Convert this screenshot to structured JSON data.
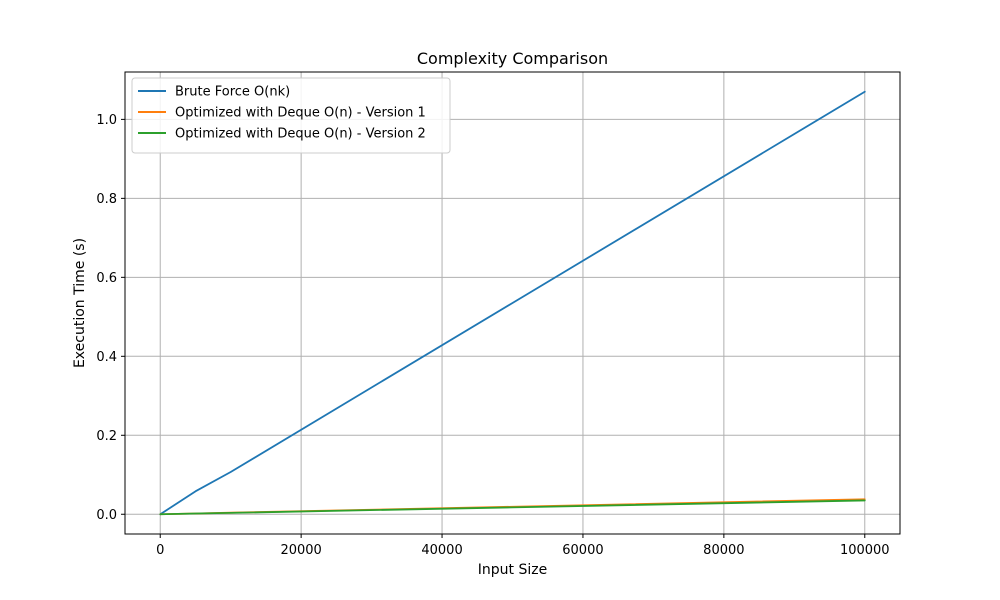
{
  "chart_data": {
    "type": "line",
    "title": "Complexity Comparison",
    "xlabel": "Input Size",
    "ylabel": "Execution Time (s)",
    "xlim": [
      -5000,
      105000
    ],
    "ylim": [
      -0.05,
      1.12
    ],
    "x_ticks": [
      0,
      20000,
      40000,
      60000,
      80000,
      100000
    ],
    "y_ticks": [
      0.0,
      0.2,
      0.4,
      0.6,
      0.8,
      1.0
    ],
    "x_tick_labels": [
      "0",
      "20000",
      "40000",
      "60000",
      "80000",
      "100000"
    ],
    "y_tick_labels": [
      "0.0",
      "0.2",
      "0.4",
      "0.6",
      "0.8",
      "1.0"
    ],
    "grid": true,
    "legend_position": "top-left",
    "x": [
      10,
      5000,
      10000,
      50000,
      100000
    ],
    "series": [
      {
        "name": "Brute Force O(nk)",
        "color": "#1f77b4",
        "values": [
          0.0,
          0.058,
          0.107,
          0.535,
          1.07
        ]
      },
      {
        "name": "Optimized with Deque O(n) - Version 1",
        "color": "#ff7f0e",
        "values": [
          0.0,
          0.002,
          0.004,
          0.019,
          0.038
        ]
      },
      {
        "name": "Optimized with Deque O(n) - Version 2",
        "color": "#2ca02c",
        "values": [
          0.0,
          0.002,
          0.0035,
          0.0175,
          0.035
        ]
      }
    ]
  }
}
